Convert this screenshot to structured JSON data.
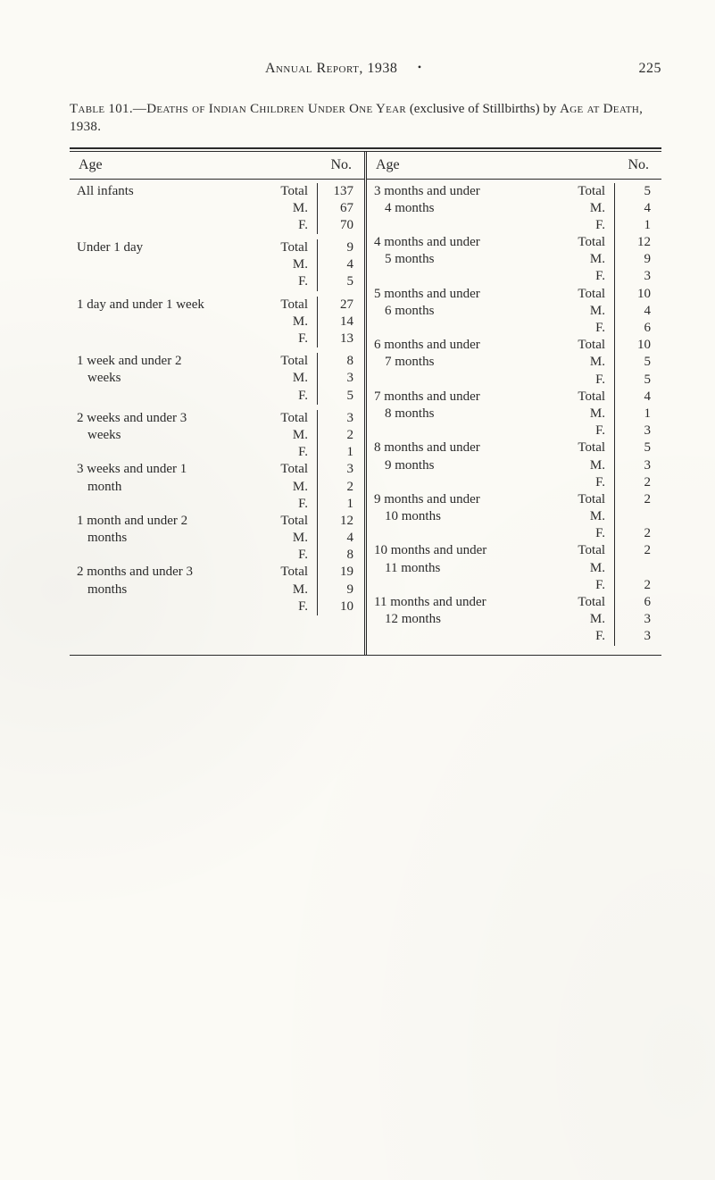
{
  "header": {
    "title": "Annual Report, 1938",
    "bullet": "•",
    "page_number": "225"
  },
  "caption": {
    "lead": "Table 101.—",
    "rest_sc": "Deaths of Indian Children Under One Year",
    "in_parens": "(exclusive of Stillbirths)",
    "by": "by",
    "by_sc": "Age at Death, 1938."
  },
  "col_heads": {
    "age": "Age",
    "no": "No."
  },
  "left_groups": [
    {
      "term": "All infants",
      "cont": "",
      "total": 137,
      "m": 67,
      "f": 70
    },
    {
      "term": "Under 1 day",
      "cont": "",
      "total": 9,
      "m": 4,
      "f": 5
    },
    {
      "term": "1 day and under 1 week",
      "cont": "",
      "total": 27,
      "m": 14,
      "f": 13,
      "compact": true
    },
    {
      "term": "1 week and under 2",
      "cont": "weeks",
      "total": 8,
      "m": 3,
      "f": 5
    },
    {
      "term": "2 weeks and under 3",
      "cont": "weeks",
      "total": 3,
      "m": 2,
      "f": 1
    },
    {
      "term": "3 weeks and under 1",
      "cont": "month",
      "total": 3,
      "m": 2,
      "f": 1
    },
    {
      "term": "1 month and under 2",
      "cont": "months",
      "total": 12,
      "m": 4,
      "f": 8
    },
    {
      "term": "2 months and under 3",
      "cont": "months",
      "total": 19,
      "m": 9,
      "f": 10
    }
  ],
  "right_groups": [
    {
      "term": "3 months and under",
      "cont": "4 months",
      "total": 5,
      "m": 4,
      "f": 1
    },
    {
      "term": "4 months and under",
      "cont": "5 months",
      "total": 12,
      "m": 9,
      "f": 3
    },
    {
      "term": "5 months and under",
      "cont": "6 months",
      "total": 10,
      "m": 4,
      "f": 6
    },
    {
      "term": "6 months and under",
      "cont": "7 months",
      "total": 10,
      "m": 5,
      "f": 5
    },
    {
      "term": "7 months and under",
      "cont": "8 months",
      "total": 4,
      "m": 1,
      "f": 3
    },
    {
      "term": "8 months and under",
      "cont": "9 months",
      "total": 5,
      "m": 3,
      "f": 2
    },
    {
      "term": "9 months and under",
      "cont": "10 months",
      "total": 2,
      "m": "",
      "f": 2
    },
    {
      "term": "10 months and under",
      "cont": "11 months",
      "total": 2,
      "m": "",
      "f": 2
    },
    {
      "term": "11 months and under",
      "cont": "12 months",
      "total": 6,
      "m": 3,
      "f": 3
    }
  ],
  "suffix_labels": {
    "total": "Total",
    "m": "M.",
    "f": "F."
  },
  "colors": {
    "text": "#2a2a2a",
    "background": "#fbfaf5",
    "rule": "#2a2a2a",
    "leader": "#555555"
  },
  "typography": {
    "body_fontsize_pt": 11,
    "caption_fontsize_pt": 11,
    "header_fontsize_pt": 12,
    "font_family": "Times New Roman / old-style serif"
  }
}
